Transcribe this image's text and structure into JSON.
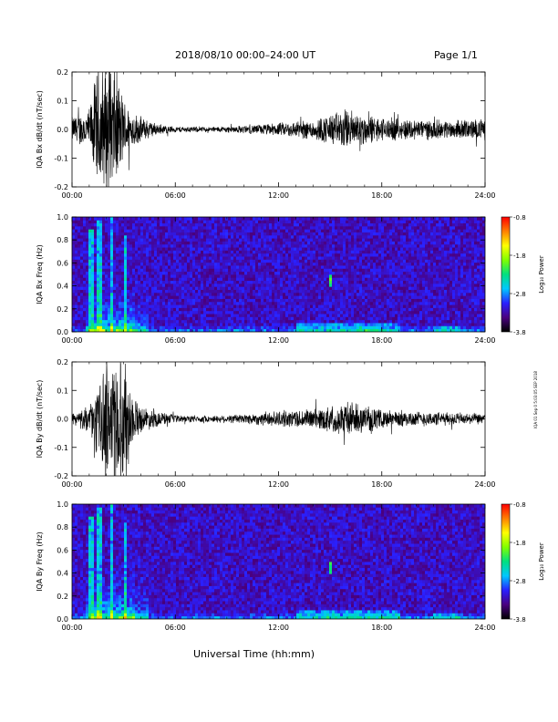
{
  "header": {
    "title": "2018/08/10  00:00–24:00 UT",
    "page": "Page 1/1"
  },
  "footer": {
    "xlabel": "Universal Time (hh:mm)",
    "sidenote": "IQA 01 Sep 0 5:03:05 SEP 2018"
  },
  "colorbar": {
    "label": "Log₁₀ Power",
    "ticks": [
      "-0.8",
      "-1.8",
      "-2.8",
      "-3.8"
    ],
    "range": [
      -3.8,
      -0.8
    ],
    "colors": [
      "#000000",
      "#4a0080",
      "#2a20ff",
      "#00c8ff",
      "#00e080",
      "#80ff00",
      "#ffff00",
      "#ff8000",
      "#ff0000"
    ]
  },
  "chart_data": [
    {
      "type": "line",
      "name": "bx-dbdt",
      "ylabel": "IQA Bx dB/dt (nT/sec)",
      "xlim": [
        0,
        24
      ],
      "ylim": [
        -0.2,
        0.2
      ],
      "xticks": [
        "00:00",
        "06:00",
        "12:00",
        "18:00",
        "24:00"
      ],
      "yticks": [
        "0.2",
        "0.1",
        "0.0",
        "-0.1",
        "-0.2"
      ],
      "envelope_hours": [
        0,
        1,
        1.5,
        2,
        2.5,
        3,
        3.5,
        4,
        5,
        6,
        8,
        10,
        12,
        14,
        15,
        16,
        17,
        18,
        20,
        22,
        24
      ],
      "envelope_amp": [
        0.05,
        0.08,
        0.25,
        0.25,
        0.25,
        0.12,
        0.07,
        0.05,
        0.02,
        0.012,
        0.01,
        0.015,
        0.025,
        0.04,
        0.06,
        0.08,
        0.06,
        0.045,
        0.04,
        0.035,
        0.04
      ]
    },
    {
      "type": "heatmap",
      "name": "bx-spectrogram",
      "ylabel": "IQA Bx Freq (Hz)",
      "xlim": [
        0,
        24
      ],
      "ylim": [
        0,
        1.0
      ],
      "xticks": [
        "00:00",
        "06:00",
        "12:00",
        "18:00",
        "24:00"
      ],
      "yticks": [
        "1.0",
        "0.8",
        "0.6",
        "0.4",
        "0.2",
        "0.0"
      ],
      "features": [
        {
          "hour": 1.1,
          "max_freq": 0.9
        },
        {
          "hour": 1.6,
          "max_freq": 0.98
        },
        {
          "hour": 2.3,
          "max_freq": 1.0
        },
        {
          "hour": 3.1,
          "max_freq": 0.85
        },
        {
          "hour": 15.0,
          "freq": 0.45
        }
      ]
    },
    {
      "type": "line",
      "name": "by-dbdt",
      "ylabel": "IQA By dB/dt (nT/sec)",
      "xlim": [
        0,
        24
      ],
      "ylim": [
        -0.2,
        0.2
      ],
      "xticks": [
        "00:00",
        "06:00",
        "12:00",
        "18:00",
        "24:00"
      ],
      "yticks": [
        "0.2",
        "0.1",
        "0.0",
        "-0.1",
        "-0.2"
      ],
      "envelope_hours": [
        0,
        1,
        1.5,
        2,
        2.5,
        3,
        3.5,
        4,
        5,
        6,
        8,
        10,
        12,
        14,
        15,
        16,
        17,
        18,
        20,
        22,
        24
      ],
      "envelope_amp": [
        0.02,
        0.05,
        0.12,
        0.25,
        0.25,
        0.25,
        0.1,
        0.05,
        0.03,
        0.015,
        0.012,
        0.02,
        0.03,
        0.04,
        0.05,
        0.07,
        0.05,
        0.035,
        0.03,
        0.025,
        0.02
      ]
    },
    {
      "type": "heatmap",
      "name": "by-spectrogram",
      "ylabel": "IQA By Freq (Hz)",
      "xlim": [
        0,
        24
      ],
      "ylim": [
        0,
        1.0
      ],
      "xticks": [
        "00:00",
        "06:00",
        "12:00",
        "18:00",
        "24:00"
      ],
      "yticks": [
        "1.0",
        "0.8",
        "0.6",
        "0.4",
        "0.2",
        "0.0"
      ],
      "features": [
        {
          "hour": 1.1,
          "max_freq": 0.9
        },
        {
          "hour": 1.6,
          "max_freq": 0.98
        },
        {
          "hour": 2.3,
          "max_freq": 1.0
        },
        {
          "hour": 3.1,
          "max_freq": 0.85
        },
        {
          "hour": 15.0,
          "freq": 0.45
        }
      ]
    }
  ]
}
